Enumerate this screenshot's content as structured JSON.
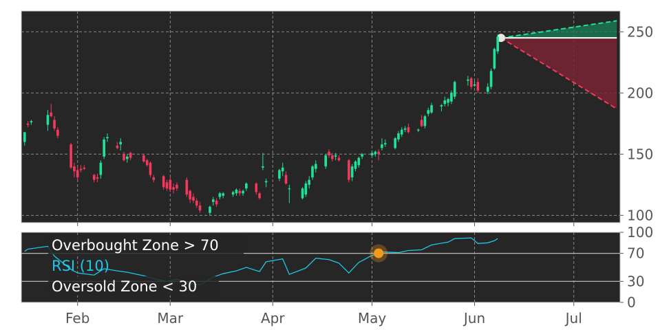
{
  "chart_data": [
    {
      "type": "candlestick",
      "title": "",
      "x_ticks": [
        "Feb",
        "Mar",
        "Apr",
        "May",
        "Jun",
        "Jul"
      ],
      "y_ticks": [
        100,
        150,
        200,
        250
      ],
      "ylim": [
        94,
        267
      ],
      "grid": true,
      "candles": [
        {
          "date": "Jan 16",
          "open": 160,
          "high": 167,
          "low": 157,
          "close": 168
        },
        {
          "date": "Jan 17",
          "open": 175,
          "high": 177,
          "low": 172,
          "close": 174
        },
        {
          "date": "Jan 18",
          "open": 176,
          "high": 178,
          "low": 174,
          "close": 177
        },
        {
          "date": "Jan 23",
          "open": 174,
          "high": 186,
          "low": 169,
          "close": 182
        },
        {
          "date": "Jan 24",
          "open": 184,
          "high": 191,
          "low": 180,
          "close": 181
        },
        {
          "date": "Jan 25",
          "open": 178,
          "high": 181,
          "low": 169,
          "close": 171
        },
        {
          "date": "Jan 26",
          "open": 170,
          "high": 172,
          "low": 163,
          "close": 165
        },
        {
          "date": "Jan 30",
          "open": 158,
          "high": 159,
          "low": 138,
          "close": 139
        },
        {
          "date": "Jan 31",
          "open": 140,
          "high": 143,
          "low": 131,
          "close": 136
        },
        {
          "date": "Feb 1",
          "open": 137,
          "high": 140,
          "low": 128,
          "close": 131
        },
        {
          "date": "Feb 2",
          "open": 138,
          "high": 141,
          "low": 135,
          "close": 137
        },
        {
          "date": "Feb 3",
          "open": 139,
          "high": 141,
          "low": 137,
          "close": 138
        },
        {
          "date": "Feb 6",
          "open": 133,
          "high": 134,
          "low": 127,
          "close": 129
        },
        {
          "date": "Feb 7",
          "open": 131,
          "high": 134,
          "low": 127,
          "close": 130
        },
        {
          "date": "Feb 8",
          "open": 133,
          "high": 145,
          "low": 130,
          "close": 143
        },
        {
          "date": "Feb 9",
          "open": 148,
          "high": 164,
          "low": 146,
          "close": 162
        },
        {
          "date": "Feb 10",
          "open": 163,
          "high": 167,
          "low": 160,
          "close": 164
        },
        {
          "date": "Feb 13",
          "open": 157,
          "high": 160,
          "low": 154,
          "close": 155
        },
        {
          "date": "Feb 14",
          "open": 158,
          "high": 163,
          "low": 153,
          "close": 160
        },
        {
          "date": "Feb 15",
          "open": 150,
          "high": 152,
          "low": 144,
          "close": 145
        },
        {
          "date": "Feb 16",
          "open": 146,
          "high": 150,
          "low": 143,
          "close": 148
        },
        {
          "date": "Feb 17",
          "open": 151,
          "high": 152,
          "low": 145,
          "close": 147
        },
        {
          "date": "Feb 21",
          "open": 149,
          "high": 150,
          "low": 143,
          "close": 144
        },
        {
          "date": "Feb 22",
          "open": 145,
          "high": 146,
          "low": 140,
          "close": 141
        },
        {
          "date": "Feb 23",
          "open": 143,
          "high": 144,
          "low": 131,
          "close": 133
        },
        {
          "date": "Feb 24",
          "open": 131,
          "high": 133,
          "low": 127,
          "close": 129
        },
        {
          "date": "Feb 27",
          "open": 132,
          "high": 133,
          "low": 121,
          "close": 123
        },
        {
          "date": "Feb 28",
          "open": 127,
          "high": 129,
          "low": 120,
          "close": 122
        },
        {
          "date": "Mar 1",
          "open": 129,
          "high": 131,
          "low": 119,
          "close": 121
        },
        {
          "date": "Mar 2",
          "open": 123,
          "high": 126,
          "low": 118,
          "close": 121
        },
        {
          "date": "Mar 3",
          "open": 125,
          "high": 127,
          "low": 120,
          "close": 122
        },
        {
          "date": "Mar 6",
          "open": 129,
          "high": 131,
          "low": 115,
          "close": 117
        },
        {
          "date": "Mar 7",
          "open": 120,
          "high": 121,
          "low": 110,
          "close": 113
        },
        {
          "date": "Mar 8",
          "open": 115,
          "high": 118,
          "low": 110,
          "close": 112
        },
        {
          "date": "Mar 9",
          "open": 112,
          "high": 114,
          "low": 106,
          "close": 108
        },
        {
          "date": "Mar 10",
          "open": 108,
          "high": 111,
          "low": 102,
          "close": 104
        },
        {
          "date": "Mar 13",
          "open": 102,
          "high": 108,
          "low": 100,
          "close": 107
        },
        {
          "date": "Mar 14",
          "open": 111,
          "high": 115,
          "low": 108,
          "close": 113
        },
        {
          "date": "Mar 15",
          "open": 112,
          "high": 114,
          "low": 107,
          "close": 109
        },
        {
          "date": "Mar 16",
          "open": 115,
          "high": 119,
          "low": 113,
          "close": 118
        },
        {
          "date": "Mar 17",
          "open": 116,
          "high": 119,
          "low": 114,
          "close": 118
        },
        {
          "date": "Mar 20",
          "open": 117,
          "high": 120,
          "low": 115,
          "close": 119
        },
        {
          "date": "Mar 21",
          "open": 118,
          "high": 122,
          "low": 116,
          "close": 121
        },
        {
          "date": "Mar 22",
          "open": 120,
          "high": 122,
          "low": 116,
          "close": 118
        },
        {
          "date": "Mar 23",
          "open": 118,
          "high": 121,
          "low": 116,
          "close": 120
        },
        {
          "date": "Mar 24",
          "open": 122,
          "high": 127,
          "low": 120,
          "close": 126
        },
        {
          "date": "Mar 27",
          "open": 126,
          "high": 127,
          "low": 117,
          "close": 119
        },
        {
          "date": "Mar 28",
          "open": 118,
          "high": 119,
          "low": 113,
          "close": 114
        },
        {
          "date": "Mar 29",
          "open": 139,
          "high": 151,
          "low": 137,
          "close": 140
        },
        {
          "date": "Mar 30",
          "open": 127,
          "high": 130,
          "low": 123,
          "close": 128
        },
        {
          "date": "Apr 3",
          "open": 130,
          "high": 138,
          "low": 128,
          "close": 137
        },
        {
          "date": "Apr 4",
          "open": 136,
          "high": 143,
          "low": 132,
          "close": 139
        },
        {
          "date": "Apr 5",
          "open": 133,
          "high": 136,
          "low": 125,
          "close": 126
        },
        {
          "date": "Apr 6",
          "open": 122,
          "high": 125,
          "low": 110,
          "close": 122
        },
        {
          "date": "Apr 10",
          "open": 114,
          "high": 123,
          "low": 113,
          "close": 122
        },
        {
          "date": "Apr 11",
          "open": 117,
          "high": 128,
          "low": 115,
          "close": 126
        },
        {
          "date": "Apr 12",
          "open": 125,
          "high": 132,
          "low": 122,
          "close": 129
        },
        {
          "date": "Apr 13",
          "open": 131,
          "high": 141,
          "low": 129,
          "close": 140
        },
        {
          "date": "Apr 14",
          "open": 138,
          "high": 145,
          "low": 135,
          "close": 142
        },
        {
          "date": "Apr 17",
          "open": 140,
          "high": 150,
          "low": 138,
          "close": 149
        },
        {
          "date": "Apr 18",
          "open": 152,
          "high": 154,
          "low": 147,
          "close": 149
        },
        {
          "date": "Apr 19",
          "open": 149,
          "high": 151,
          "low": 144,
          "close": 146
        },
        {
          "date": "Apr 20",
          "open": 148,
          "high": 151,
          "low": 145,
          "close": 149
        },
        {
          "date": "Apr 21",
          "open": 147,
          "high": 149,
          "low": 144,
          "close": 145
        },
        {
          "date": "Apr 24",
          "open": 145,
          "high": 146,
          "low": 127,
          "close": 129
        },
        {
          "date": "Apr 25",
          "open": 131,
          "high": 142,
          "low": 128,
          "close": 140
        },
        {
          "date": "Apr 26",
          "open": 138,
          "high": 145,
          "low": 136,
          "close": 144
        },
        {
          "date": "Apr 27",
          "open": 141,
          "high": 148,
          "low": 139,
          "close": 147
        },
        {
          "date": "Apr 28",
          "open": 148,
          "high": 151,
          "low": 146,
          "close": 150
        },
        {
          "date": "May 1",
          "open": 149,
          "high": 153,
          "low": 147,
          "close": 151
        },
        {
          "date": "May 2",
          "open": 150,
          "high": 153,
          "low": 148,
          "close": 152
        },
        {
          "date": "May 3",
          "open": 152,
          "high": 154,
          "low": 145,
          "close": 150
        },
        {
          "date": "May 4",
          "open": 155,
          "high": 163,
          "low": 153,
          "close": 158
        },
        {
          "date": "May 5",
          "open": 158,
          "high": 162,
          "low": 156,
          "close": 159
        },
        {
          "date": "May 8",
          "open": 155,
          "high": 164,
          "low": 154,
          "close": 163
        },
        {
          "date": "May 9",
          "open": 162,
          "high": 169,
          "low": 160,
          "close": 167
        },
        {
          "date": "May 10",
          "open": 166,
          "high": 172,
          "low": 164,
          "close": 170
        },
        {
          "date": "May 11",
          "open": 170,
          "high": 173,
          "low": 168,
          "close": 171
        },
        {
          "date": "May 12",
          "open": 172,
          "high": 175,
          "low": 167,
          "close": 168
        },
        {
          "date": "May 15",
          "open": 170,
          "high": 171,
          "low": 168,
          "close": 170
        },
        {
          "date": "May 16",
          "open": 178,
          "high": 182,
          "low": 172,
          "close": 173
        },
        {
          "date": "May 17",
          "open": 173,
          "high": 182,
          "low": 171,
          "close": 181
        },
        {
          "date": "May 18",
          "open": 183,
          "high": 188,
          "low": 181,
          "close": 186
        },
        {
          "date": "May 19",
          "open": 184,
          "high": 192,
          "low": 183,
          "close": 190
        },
        {
          "date": "May 22",
          "open": 189,
          "high": 191,
          "low": 185,
          "close": 190
        },
        {
          "date": "May 23",
          "open": 191,
          "high": 197,
          "low": 189,
          "close": 194
        },
        {
          "date": "May 24",
          "open": 192,
          "high": 196,
          "low": 189,
          "close": 195
        },
        {
          "date": "May 25",
          "open": 193,
          "high": 202,
          "low": 191,
          "close": 200
        },
        {
          "date": "May 26",
          "open": 197,
          "high": 210,
          "low": 195,
          "close": 209
        },
        {
          "date": "May 30",
          "open": 210,
          "high": 214,
          "low": 206,
          "close": 211
        },
        {
          "date": "May 31",
          "open": 212,
          "high": 213,
          "low": 203,
          "close": 205
        },
        {
          "date": "Jun 1",
          "open": 206,
          "high": 210,
          "low": 205,
          "close": 207
        },
        {
          "date": "Jun 2",
          "open": 209,
          "high": 212,
          "low": 200,
          "close": 202
        },
        {
          "date": "Jun 5",
          "open": 201,
          "high": 208,
          "low": 199,
          "close": 205
        },
        {
          "date": "Jun 6",
          "open": 205,
          "high": 220,
          "low": 203,
          "close": 218
        },
        {
          "date": "Jun 7",
          "open": 220,
          "high": 237,
          "low": 219,
          "close": 236
        },
        {
          "date": "Jun 8",
          "open": 234,
          "high": 248,
          "low": 232,
          "close": 246
        }
      ],
      "projection": {
        "start_date": "Jun 9",
        "start_value": 245,
        "end_date": "Jul 14",
        "upper_end": 259,
        "lower_end": 187,
        "baseline": 245
      },
      "up_color": "#20e39a",
      "down_color": "#f6385e"
    },
    {
      "type": "line",
      "x_ticks": [
        "Feb",
        "Mar",
        "Apr",
        "May",
        "Jun",
        "Jul"
      ],
      "y_ticks": [
        0,
        30,
        70,
        100
      ],
      "ylim": [
        0,
        100
      ],
      "series": [
        {
          "name": "RSI (10)",
          "color": "#1ec8e8",
          "x": [
            "Jan 16",
            "Jan 17",
            "Jan 23",
            "Jan 25",
            "Jan 30",
            "Feb 1",
            "Feb 6",
            "Feb 9",
            "Feb 13",
            "Feb 16",
            "Feb 21",
            "Feb 24",
            "Feb 28",
            "Mar 3",
            "Mar 7",
            "Mar 10",
            "Mar 14",
            "Mar 17",
            "Mar 21",
            "Mar 24",
            "Mar 28",
            "Mar 30",
            "Apr 4",
            "Apr 6",
            "Apr 11",
            "Apr 14",
            "Apr 18",
            "Apr 21",
            "Apr 24",
            "Apr 27",
            "May 1",
            "May 3",
            "May 4",
            "May 9",
            "May 12",
            "May 16",
            "May 19",
            "May 24",
            "May 26",
            "May 31",
            "Jun 2",
            "Jun 5",
            "Jun 7",
            "Jun 8"
          ],
          "values": [
            73,
            76,
            80,
            66,
            47,
            42,
            39,
            48,
            45,
            43,
            38,
            34,
            30,
            33,
            27,
            25,
            36,
            41,
            45,
            50,
            44,
            58,
            62,
            40,
            49,
            63,
            61,
            56,
            42,
            57,
            67,
            69,
            72,
            71,
            74,
            75,
            82,
            86,
            91,
            92,
            84,
            85,
            88,
            91
          ]
        }
      ],
      "levels": [
        {
          "label": "Overbought Zone > 70",
          "value": 70
        },
        {
          "label": "Oversold Zone < 30",
          "value": 30
        }
      ],
      "marker": {
        "date": "May 3",
        "value": 70
      }
    }
  ]
}
